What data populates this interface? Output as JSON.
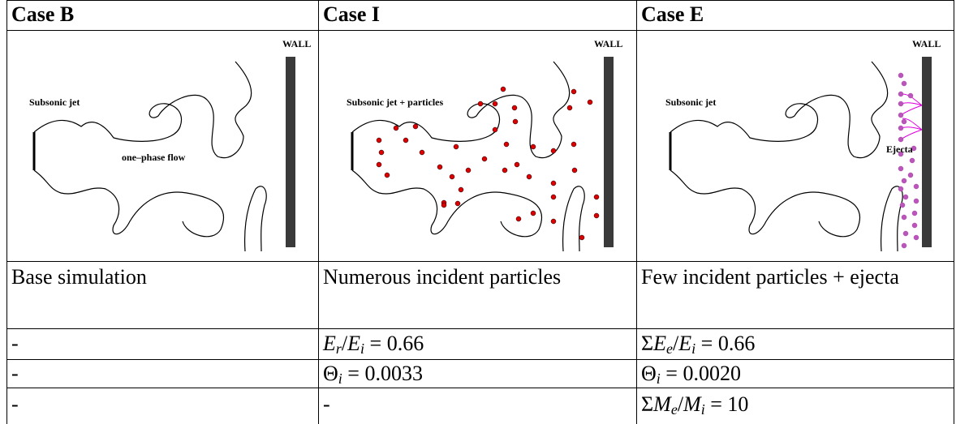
{
  "header": [
    "Case B",
    "Case I",
    "Case E"
  ],
  "diagrams": [
    {
      "wall": "WALL",
      "labels": [
        "Subsonic jet",
        "one–phase flow"
      ]
    },
    {
      "wall": "WALL",
      "labels": [
        "Subsonic jet + particles"
      ]
    },
    {
      "wall": "WALL",
      "labels": [
        "Subsonic jet",
        "Ejecta"
      ]
    }
  ],
  "descriptions": [
    "Base simulation",
    "Numerous incident particles",
    "Few incident particles + ejecta"
  ],
  "rows": [
    [
      [
        {
          "t": "-",
          "s": "n"
        }
      ],
      [
        {
          "t": "E",
          "s": "i"
        },
        {
          "t": "r",
          "s": "sub"
        },
        {
          "t": "/",
          "s": "n"
        },
        {
          "t": "E",
          "s": "i"
        },
        {
          "t": "i",
          "s": "sub"
        },
        {
          "t": " = 0.66",
          "s": "n"
        }
      ],
      [
        {
          "t": "Σ",
          "s": "n"
        },
        {
          "t": "E",
          "s": "i"
        },
        {
          "t": "e",
          "s": "sub"
        },
        {
          "t": "/",
          "s": "n"
        },
        {
          "t": "E",
          "s": "i"
        },
        {
          "t": "i",
          "s": "sub"
        },
        {
          "t": " = 0.66",
          "s": "n"
        }
      ]
    ],
    [
      [
        {
          "t": "-",
          "s": "n"
        }
      ],
      [
        {
          "t": "Θ",
          "s": "n"
        },
        {
          "t": "i",
          "s": "sub"
        },
        {
          "t": " = 0.0033",
          "s": "n"
        }
      ],
      [
        {
          "t": "Θ",
          "s": "n"
        },
        {
          "t": "i",
          "s": "sub"
        },
        {
          "t": " = 0.0020",
          "s": "n"
        }
      ]
    ],
    [
      [
        {
          "t": "-",
          "s": "n"
        }
      ],
      [
        {
          "t": "-",
          "s": "n"
        }
      ],
      [
        {
          "t": "Σ",
          "s": "n"
        },
        {
          "t": "M",
          "s": "i"
        },
        {
          "t": "e",
          "s": "sub"
        },
        {
          "t": "/",
          "s": "n"
        },
        {
          "t": "M",
          "s": "i"
        },
        {
          "t": "i",
          "s": "sub"
        },
        {
          "t": " = 10",
          "s": "n"
        }
      ]
    ]
  ]
}
